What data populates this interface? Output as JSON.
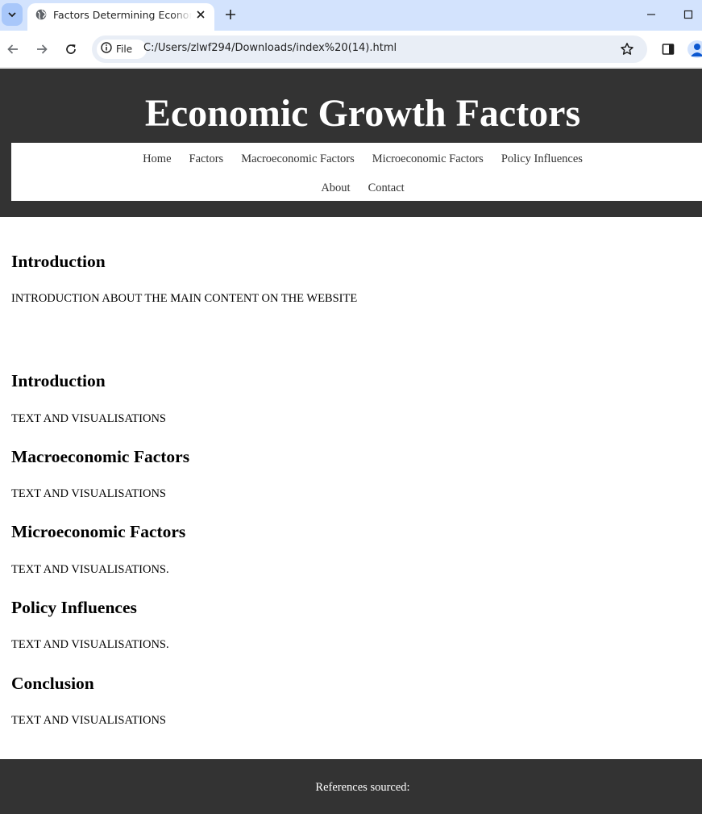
{
  "browser": {
    "tab_title": "Factors Determining Economic Growth",
    "site_chip_label": "File",
    "url": "C:/Users/zlwf294/Downloads/index%20(14).html",
    "icons": [
      "tab-search-icon",
      "globe-icon",
      "close-icon",
      "plus-icon",
      "minimize-icon",
      "maximize-icon",
      "back-arrow-icon",
      "forward-arrow-icon",
      "reload-icon",
      "info-icon",
      "star-icon",
      "side-panel-icon",
      "profile-icon"
    ]
  },
  "header": {
    "title": "Economic Growth Factors"
  },
  "nav": {
    "row1": [
      "Home",
      "Factors",
      "Macroeconomic Factors",
      "Microeconomic Factors",
      "Policy Influences"
    ],
    "row2": [
      "About",
      "Contact"
    ]
  },
  "sections": [
    {
      "heading": "Introduction",
      "text": "INTRODUCTION ABOUT THE MAIN CONTENT ON THE WEBSITE"
    },
    {
      "heading": "Introduction",
      "text": "TEXT AND VISUALISATIONS"
    },
    {
      "heading": "Macroeconomic Factors",
      "text": "TEXT AND VISUALISATIONS"
    },
    {
      "heading": "Microeconomic Factors",
      "text": "TEXT AND VISUALISATIONS."
    },
    {
      "heading": "Policy Influences",
      "text": "TEXT AND VISUALISATIONS."
    },
    {
      "heading": "Conclusion",
      "text": "TEXT AND VISUALISATIONS"
    }
  ],
  "footer": {
    "text": "References sourced:"
  },
  "colors": {
    "header_bg": "#333333",
    "footer_bg": "#333333",
    "tabstrip_bg": "#d3e3fd",
    "omnibox_bg": "#e9eef6"
  }
}
